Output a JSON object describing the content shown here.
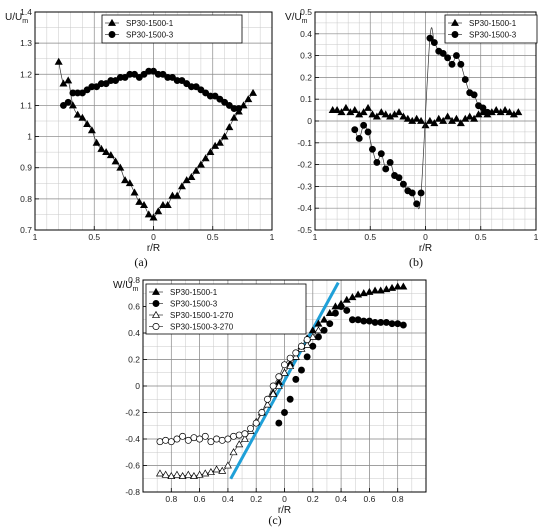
{
  "chart_data": [
    {
      "id": "a",
      "type": "scatter",
      "caption": "(a)",
      "ylabel_main": "U/U",
      "ylabel_sub": "m",
      "xlabel": "r/R",
      "xlim": [
        1,
        -1
      ],
      "ylim": [
        0.7,
        1.4
      ],
      "xticks": [
        {
          "v": 1,
          "t": "1"
        },
        {
          "v": 0.5,
          "t": "0.5"
        },
        {
          "v": 0,
          "t": "0"
        },
        {
          "v": -0.5,
          "t": "0.5"
        },
        {
          "v": -1,
          "t": "1"
        }
      ],
      "yticks": [
        {
          "v": 0.7,
          "t": "0.7"
        },
        {
          "v": 0.8,
          "t": "0.8"
        },
        {
          "v": 0.9,
          "t": "0.9"
        },
        {
          "v": 1.0,
          "t": "1"
        },
        {
          "v": 1.1,
          "t": "1.1"
        },
        {
          "v": 1.2,
          "t": "1.2"
        },
        {
          "v": 1.3,
          "t": "1.3"
        },
        {
          "v": 1.4,
          "t": "1.4"
        }
      ],
      "minor_x": 0.1,
      "minor_y": 0.05,
      "grid": true,
      "legend_position": "top-center",
      "series": [
        {
          "name": "SP30-1500-1",
          "marker": "tri",
          "line": true,
          "x": [
            0.8,
            0.76,
            0.72,
            0.68,
            0.64,
            0.6,
            0.56,
            0.52,
            0.48,
            0.44,
            0.4,
            0.36,
            0.32,
            0.28,
            0.24,
            0.2,
            0.16,
            0.12,
            0.08,
            0.04,
            0.0,
            -0.04,
            -0.08,
            -0.12,
            -0.16,
            -0.2,
            -0.24,
            -0.28,
            -0.32,
            -0.36,
            -0.4,
            -0.44,
            -0.48,
            -0.52,
            -0.56,
            -0.6,
            -0.64,
            -0.68,
            -0.72,
            -0.76,
            -0.8,
            -0.84
          ],
          "y": [
            1.24,
            1.17,
            1.18,
            1.1,
            1.07,
            1.06,
            1.04,
            1.02,
            0.98,
            0.96,
            0.95,
            0.94,
            0.92,
            0.9,
            0.86,
            0.85,
            0.82,
            0.79,
            0.78,
            0.75,
            0.74,
            0.76,
            0.78,
            0.78,
            0.81,
            0.81,
            0.84,
            0.86,
            0.87,
            0.89,
            0.91,
            0.93,
            0.95,
            0.97,
            0.98,
            1.0,
            1.03,
            1.06,
            1.08,
            1.1,
            1.12,
            1.14
          ]
        },
        {
          "name": "SP30-1500-3",
          "marker": "circle",
          "line": false,
          "x": [
            0.76,
            0.72,
            0.68,
            0.64,
            0.6,
            0.56,
            0.52,
            0.48,
            0.44,
            0.4,
            0.36,
            0.32,
            0.28,
            0.24,
            0.2,
            0.16,
            0.12,
            0.08,
            0.04,
            0.0,
            -0.04,
            -0.08,
            -0.12,
            -0.16,
            -0.2,
            -0.24,
            -0.28,
            -0.32,
            -0.36,
            -0.4,
            -0.44,
            -0.48,
            -0.52,
            -0.56,
            -0.6,
            -0.64,
            -0.68,
            -0.72
          ],
          "y": [
            1.1,
            1.11,
            1.14,
            1.14,
            1.14,
            1.15,
            1.16,
            1.16,
            1.17,
            1.17,
            1.18,
            1.18,
            1.19,
            1.19,
            1.2,
            1.2,
            1.19,
            1.2,
            1.21,
            1.21,
            1.2,
            1.2,
            1.19,
            1.19,
            1.18,
            1.18,
            1.17,
            1.16,
            1.16,
            1.15,
            1.14,
            1.13,
            1.13,
            1.12,
            1.11,
            1.1,
            1.09,
            1.09
          ]
        }
      ]
    },
    {
      "id": "b",
      "type": "scatter",
      "caption": "(b)",
      "ylabel_main": "V/U",
      "ylabel_sub": "m",
      "xlabel": "r/R",
      "xlim": [
        1,
        -1
      ],
      "ylim": [
        -0.5,
        0.5
      ],
      "xticks": [
        {
          "v": 1,
          "t": "1"
        },
        {
          "v": 0.5,
          "t": "0.5"
        },
        {
          "v": 0,
          "t": "0"
        },
        {
          "v": -0.5,
          "t": "0.5"
        },
        {
          "v": -1,
          "t": "1"
        }
      ],
      "yticks": [
        {
          "v": -0.5,
          "t": "-0.5"
        },
        {
          "v": -0.4,
          "t": "-0.4"
        },
        {
          "v": -0.3,
          "t": "-0.3"
        },
        {
          "v": -0.2,
          "t": "-0.2"
        },
        {
          "v": -0.1,
          "t": "-0.1"
        },
        {
          "v": 0,
          "t": "0"
        },
        {
          "v": 0.1,
          "t": "0.1"
        },
        {
          "v": 0.2,
          "t": "0.2"
        },
        {
          "v": 0.3,
          "t": "0.3"
        },
        {
          "v": 0.4,
          "t": "0.4"
        },
        {
          "v": 0.5,
          "t": "0.5"
        }
      ],
      "minor_x": 0.1,
      "minor_y": 0.05,
      "grid": true,
      "legend_position": "top-right",
      "series": [
        {
          "name": "SP30-1500-1",
          "marker": "tri",
          "line": false,
          "x": [
            0.84,
            0.8,
            0.76,
            0.72,
            0.68,
            0.64,
            0.6,
            0.56,
            0.52,
            0.48,
            0.44,
            0.4,
            0.36,
            0.32,
            0.28,
            0.24,
            0.2,
            0.16,
            0.12,
            0.08,
            0.04,
            0.0,
            -0.04,
            -0.08,
            -0.12,
            -0.16,
            -0.2,
            -0.24,
            -0.28,
            -0.32,
            -0.36,
            -0.4,
            -0.44,
            -0.48,
            -0.52,
            -0.56,
            -0.6,
            -0.64,
            -0.68,
            -0.72,
            -0.76,
            -0.8,
            -0.84
          ],
          "y": [
            0.05,
            0.05,
            0.04,
            0.06,
            0.04,
            0.05,
            0.03,
            0.04,
            0.06,
            0.03,
            0.02,
            0.04,
            0.03,
            0.02,
            0.03,
            0.04,
            0.02,
            0.01,
            0.0,
            0.01,
            0.0,
            -0.02,
            0.0,
            -0.01,
            0.01,
            0.0,
            0.02,
            0.0,
            0.01,
            -0.01,
            0.01,
            0.02,
            0.01,
            0.03,
            0.04,
            0.03,
            0.04,
            0.05,
            0.04,
            0.05,
            0.04,
            0.03,
            0.04
          ]
        },
        {
          "name": "SP30-1500-3",
          "marker": "circle",
          "line": true,
          "x": [
            0.64,
            0.6,
            0.56,
            0.52,
            0.48,
            0.44,
            0.4,
            0.36,
            0.32,
            0.28,
            0.24,
            0.2,
            0.16,
            0.12,
            0.08,
            0.04,
            -0.04,
            -0.08,
            -0.12,
            -0.16,
            -0.2,
            -0.24,
            -0.28,
            -0.32,
            -0.36,
            -0.4,
            -0.44,
            -0.48,
            -0.52,
            -0.56
          ],
          "y": [
            -0.04,
            -0.08,
            -0.02,
            -0.05,
            -0.13,
            -0.19,
            -0.15,
            -0.22,
            -0.19,
            -0.25,
            -0.26,
            -0.29,
            -0.32,
            -0.33,
            -0.38,
            -0.33,
            0.38,
            0.36,
            0.32,
            0.31,
            0.29,
            0.26,
            0.3,
            0.26,
            0.19,
            0.13,
            0.12,
            0.07,
            0.06,
            0.04
          ]
        }
      ]
    },
    {
      "id": "c",
      "type": "scatter",
      "caption": "(c)",
      "ylabel_main": "W/U",
      "ylabel_sub": "m",
      "xlabel": "r/R",
      "xlim": [
        1,
        -1
      ],
      "ylim": [
        -0.8,
        0.8
      ],
      "xticks": [
        {
          "v": 0.8,
          "t": "0.8"
        },
        {
          "v": 0.6,
          "t": "0.6"
        },
        {
          "v": 0.4,
          "t": "0.4"
        },
        {
          "v": 0.2,
          "t": "0.2"
        },
        {
          "v": 0,
          "t": "0"
        },
        {
          "v": -0.2,
          "t": "0.2"
        },
        {
          "v": -0.4,
          "t": "0.4"
        },
        {
          "v": -0.6,
          "t": "0.6"
        },
        {
          "v": -0.8,
          "t": "0.8"
        }
      ],
      "yticks": [
        {
          "v": -0.8,
          "t": "-0.8"
        },
        {
          "v": -0.6,
          "t": "-0.6"
        },
        {
          "v": -0.4,
          "t": "-0.4"
        },
        {
          "v": -0.2,
          "t": "-0.2"
        },
        {
          "v": 0,
          "t": "0"
        },
        {
          "v": 0.2,
          "t": "0.2"
        },
        {
          "v": 0.4,
          "t": "0.4"
        },
        {
          "v": 0.6,
          "t": "0.6"
        },
        {
          "v": 0.8,
          "t": "0.8"
        }
      ],
      "minor_x": 0.1,
      "minor_y": 0.1,
      "grid": true,
      "legend_position": "top-left",
      "accent_line": {
        "color": "#1fa0d8",
        "x": [
          0.38,
          -0.38
        ],
        "y": [
          -0.7,
          0.78
        ]
      },
      "series": [
        {
          "name": "SP30-1500-1",
          "marker": "tri",
          "line": false,
          "x": [
            0.08,
            0.04,
            0.0,
            -0.04,
            -0.08,
            -0.12,
            -0.16,
            -0.2,
            -0.24,
            -0.28,
            -0.32,
            -0.36,
            -0.4,
            -0.44,
            -0.48,
            -0.52,
            -0.56,
            -0.6,
            -0.64,
            -0.68,
            -0.72,
            -0.76,
            -0.8,
            -0.84
          ],
          "y": [
            -0.05,
            0.03,
            0.1,
            0.17,
            0.22,
            0.3,
            0.36,
            0.42,
            0.47,
            0.5,
            0.55,
            0.6,
            0.62,
            0.65,
            0.67,
            0.69,
            0.7,
            0.71,
            0.72,
            0.72,
            0.73,
            0.74,
            0.75,
            0.75
          ]
        },
        {
          "name": "SP30-1500-3",
          "marker": "circle",
          "line": false,
          "x": [
            0.04,
            0.0,
            -0.04,
            -0.08,
            -0.12,
            -0.16,
            -0.2,
            -0.24,
            -0.28,
            -0.32,
            -0.36,
            -0.4,
            -0.44,
            -0.48,
            -0.52,
            -0.56,
            -0.6,
            -0.64,
            -0.68,
            -0.72,
            -0.76,
            -0.8,
            -0.84
          ],
          "y": [
            -0.28,
            -0.2,
            -0.1,
            0.05,
            0.12,
            0.22,
            0.3,
            0.37,
            0.42,
            0.47,
            0.55,
            0.6,
            0.57,
            0.5,
            0.5,
            0.49,
            0.49,
            0.48,
            0.48,
            0.48,
            0.47,
            0.47,
            0.46
          ]
        },
        {
          "name": "SP30-1500-1-270",
          "marker": "tri-open",
          "line": true,
          "x": [
            0.88,
            0.84,
            0.8,
            0.76,
            0.72,
            0.68,
            0.64,
            0.6,
            0.56,
            0.52,
            0.48,
            0.44,
            0.4,
            0.36,
            0.32,
            0.28,
            0.24,
            0.2,
            0.16,
            0.12,
            0.08,
            0.04,
            0.0,
            -0.04,
            -0.08,
            -0.12,
            -0.16,
            -0.2,
            -0.24
          ],
          "y": [
            -0.66,
            -0.67,
            -0.68,
            -0.67,
            -0.68,
            -0.67,
            -0.68,
            -0.67,
            -0.66,
            -0.65,
            -0.63,
            -0.64,
            -0.6,
            -0.5,
            -0.44,
            -0.4,
            -0.34,
            -0.27,
            -0.2,
            -0.14,
            -0.06,
            0.0,
            0.1,
            0.15,
            0.22,
            0.28,
            0.31,
            0.37,
            0.42
          ]
        },
        {
          "name": "SP30-1500-3-270",
          "marker": "circle-open",
          "line": true,
          "x": [
            0.88,
            0.84,
            0.8,
            0.76,
            0.72,
            0.68,
            0.64,
            0.6,
            0.56,
            0.52,
            0.48,
            0.44,
            0.4,
            0.36,
            0.32,
            0.28,
            0.24,
            0.2,
            0.16,
            0.12,
            0.08,
            0.04,
            0.0,
            -0.04,
            -0.08,
            -0.12,
            -0.16
          ],
          "y": [
            -0.42,
            -0.41,
            -0.42,
            -0.4,
            -0.38,
            -0.41,
            -0.39,
            -0.4,
            -0.38,
            -0.42,
            -0.4,
            -0.41,
            -0.4,
            -0.38,
            -0.37,
            -0.36,
            -0.32,
            -0.28,
            -0.2,
            -0.1,
            0.0,
            0.07,
            0.16,
            0.21,
            0.25,
            0.3,
            0.35
          ]
        }
      ]
    }
  ]
}
